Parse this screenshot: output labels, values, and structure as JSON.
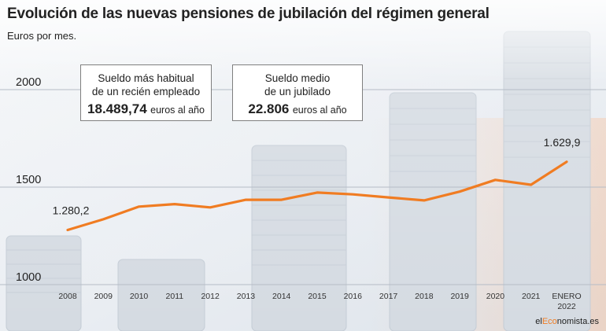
{
  "header": {
    "title": "Evolución de las nuevas pensiones de jubilación del régimen general",
    "subtitle": "Euros por mes."
  },
  "info_boxes": [
    {
      "line1": "Sueldo más habitual",
      "line2": "de un recién empleado",
      "value": "18.489,74",
      "unit": "euros al año"
    },
    {
      "line1": "Sueldo medio",
      "line2": "de un jubilado",
      "value": "22.806",
      "unit": "euros al año"
    }
  ],
  "brand": {
    "prefix": "el",
    "highlight": "Eco",
    "suffix": "nomista.es"
  },
  "colors": {
    "line": "#f07c22",
    "grid": "#b5bcc6",
    "text": "#222222"
  },
  "chart_data": {
    "type": "line",
    "title": "Evolución de las nuevas pensiones de jubilación del régimen general",
    "subtitle": "Euros por mes.",
    "xlabel": "",
    "ylabel": "",
    "categories": [
      "2008",
      "2009",
      "2010",
      "2011",
      "2012",
      "2013",
      "2014",
      "2015",
      "2016",
      "2017",
      "2018",
      "2019",
      "2020",
      "2021",
      "ENERO 2022"
    ],
    "tick_labels": [
      [
        "2008"
      ],
      [
        "2009"
      ],
      [
        "2010"
      ],
      [
        "2011"
      ],
      [
        "2012"
      ],
      [
        "2013"
      ],
      [
        "2014"
      ],
      [
        "2015"
      ],
      [
        "2016"
      ],
      [
        "2017"
      ],
      [
        "2018"
      ],
      [
        "2019"
      ],
      [
        "2020"
      ],
      [
        "2021"
      ],
      [
        "ENERO",
        "2022"
      ]
    ],
    "series": [
      {
        "values": [
          1280.2,
          1335,
          1400,
          1413,
          1396,
          1435,
          1435,
          1472,
          1463,
          1447,
          1432,
          1477,
          1537,
          1512,
          1629.9
        ]
      }
    ],
    "ylim": [
      1000,
      2000
    ],
    "yticks": [
      1000,
      1500,
      2000
    ],
    "ytick_labels": [
      "1000",
      "1500",
      "2000"
    ],
    "data_labels": [
      {
        "index": 0,
        "text": "1.280,2"
      },
      {
        "index": 14,
        "text": "1.629,9"
      }
    ],
    "grid": true,
    "legend": "none"
  }
}
